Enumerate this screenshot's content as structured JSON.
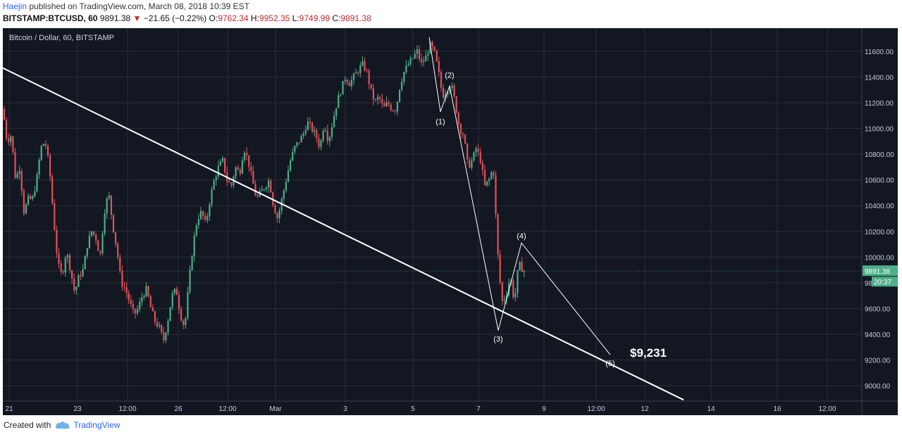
{
  "header": {
    "author": "Haejin",
    "published_text": "published on TradingView.com, March 08, 2018 10:39 EST",
    "symbol": "BITSTAMP:BTCUSD, 60",
    "last": "9891.38",
    "arrow": "▼",
    "change": "−21.65 (−0.22%)",
    "o_label": "O:",
    "o_val": "9762.34",
    "h_label": "H:",
    "h_val": "9952.35",
    "l_label": "L:",
    "l_val": "9749.99",
    "c_label": "C:",
    "c_val": "9891.38"
  },
  "footer": {
    "created_with": "Created with",
    "brand": "TradingView"
  },
  "chart_data": {
    "type": "candlestick",
    "title": "Bitcoin / Dollar, 60, BITSTAMP",
    "ylim": [
      8880,
      11780
    ],
    "y_ticks": [
      9000,
      9200,
      9400,
      9600,
      9800,
      10000,
      10200,
      10400,
      10600,
      10800,
      11000,
      11200,
      11400,
      11600
    ],
    "y_tick_labels": [
      "9000.00",
      "9200.00",
      "9400.00",
      "9600.00",
      "9800.00",
      "10000.00",
      "10200.00",
      "10400.00",
      "10600.00",
      "10800.00",
      "11000.00",
      "11200.00",
      "11400.00",
      "11600.00"
    ],
    "x_tick_labels": [
      "21",
      "23",
      "12:00",
      "26",
      "12:00",
      "Mar",
      "3",
      "5",
      "7",
      "9",
      "12:00",
      "12",
      "14",
      "16",
      "12:00"
    ],
    "price_label": "9891.38",
    "countdown_label": "20:37",
    "close_price": 9891.38,
    "price_path": [
      [
        0,
        11150
      ],
      [
        6,
        10900
      ],
      [
        12,
        10950
      ],
      [
        18,
        10600
      ],
      [
        24,
        10700
      ],
      [
        30,
        10350
      ],
      [
        36,
        10450
      ],
      [
        42,
        10450
      ],
      [
        48,
        10600
      ],
      [
        54,
        10850
      ],
      [
        60,
        10900
      ],
      [
        66,
        10700
      ],
      [
        72,
        10300
      ],
      [
        78,
        9950
      ],
      [
        84,
        9850
      ],
      [
        90,
        10050
      ],
      [
        96,
        9900
      ],
      [
        102,
        9720
      ],
      [
        108,
        9850
      ],
      [
        114,
        9900
      ],
      [
        120,
        10100
      ],
      [
        126,
        10200
      ],
      [
        132,
        10150
      ],
      [
        138,
        10000
      ],
      [
        144,
        10350
      ],
      [
        150,
        10500
      ],
      [
        156,
        10250
      ],
      [
        162,
        10050
      ],
      [
        168,
        9800
      ],
      [
        174,
        9750
      ],
      [
        180,
        9650
      ],
      [
        186,
        9550
      ],
      [
        192,
        9600
      ],
      [
        198,
        9700
      ],
      [
        204,
        9750
      ],
      [
        210,
        9600
      ],
      [
        216,
        9500
      ],
      [
        222,
        9450
      ],
      [
        228,
        9350
      ],
      [
        234,
        9500
      ],
      [
        240,
        9700
      ],
      [
        246,
        9750
      ],
      [
        252,
        9550
      ],
      [
        258,
        9450
      ],
      [
        264,
        9800
      ],
      [
        270,
        10100
      ],
      [
        276,
        10300
      ],
      [
        282,
        10350
      ],
      [
        288,
        10250
      ],
      [
        294,
        10450
      ],
      [
        300,
        10600
      ],
      [
        306,
        10700
      ],
      [
        312,
        10750
      ],
      [
        318,
        10600
      ],
      [
        324,
        10550
      ],
      [
        330,
        10700
      ],
      [
        336,
        10650
      ],
      [
        342,
        10850
      ],
      [
        348,
        10750
      ],
      [
        354,
        10600
      ],
      [
        360,
        10450
      ],
      [
        366,
        10500
      ],
      [
        372,
        10550
      ],
      [
        378,
        10600
      ],
      [
        384,
        10400
      ],
      [
        390,
        10300
      ],
      [
        396,
        10450
      ],
      [
        402,
        10600
      ],
      [
        408,
        10750
      ],
      [
        414,
        10850
      ],
      [
        420,
        10900
      ],
      [
        426,
        10950
      ],
      [
        432,
        11050
      ],
      [
        438,
        11000
      ],
      [
        444,
        10950
      ],
      [
        450,
        10850
      ],
      [
        456,
        11050
      ],
      [
        462,
        10900
      ],
      [
        468,
        11050
      ],
      [
        474,
        11200
      ],
      [
        480,
        11300
      ],
      [
        486,
        11400
      ],
      [
        492,
        11350
      ],
      [
        498,
        11400
      ],
      [
        504,
        11450
      ],
      [
        510,
        11500
      ],
      [
        516,
        11450
      ],
      [
        522,
        11300
      ],
      [
        528,
        11200
      ],
      [
        534,
        11250
      ],
      [
        540,
        11150
      ],
      [
        546,
        11200
      ],
      [
        552,
        11150
      ],
      [
        558,
        11150
      ],
      [
        564,
        11350
      ],
      [
        570,
        11450
      ],
      [
        576,
        11500
      ],
      [
        582,
        11550
      ],
      [
        588,
        11600
      ],
      [
        594,
        11500
      ],
      [
        600,
        11550
      ],
      [
        606,
        11650
      ],
      [
        612,
        11600
      ],
      [
        618,
        11450
      ],
      [
        624,
        11250
      ],
      [
        630,
        11300
      ],
      [
        636,
        11350
      ],
      [
        642,
        11200
      ],
      [
        648,
        11000
      ],
      [
        654,
        10950
      ],
      [
        660,
        10700
      ],
      [
        666,
        10750
      ],
      [
        672,
        10850
      ],
      [
        678,
        10750
      ],
      [
        684,
        10550
      ],
      [
        690,
        10600
      ],
      [
        696,
        10700
      ],
      [
        702,
        10050
      ],
      [
        708,
        9650
      ],
      [
        714,
        9700
      ],
      [
        720,
        9850
      ],
      [
        726,
        9650
      ],
      [
        732,
        9950
      ],
      [
        738,
        9900
      ],
      [
        742,
        9891
      ]
    ],
    "trendline": [
      [
        1990,
        11470
      ],
      [
        5680,
        8890
      ]
    ],
    "wave_labels": [
      {
        "label": "(1)",
        "x": 621,
        "y": 11120
      },
      {
        "label": "(2)",
        "x": 634,
        "y": 11350
      },
      {
        "label": "(3)",
        "x": 703,
        "y": 9430
      },
      {
        "label": "(4)",
        "x": 736,
        "y": 10100
      },
      {
        "label": "(5)",
        "x": 862,
        "y": 9240
      }
    ],
    "wave_path": [
      [
        605,
        11710
      ],
      [
        621,
        11130
      ],
      [
        634,
        11330
      ],
      [
        703,
        9430
      ],
      [
        736,
        10110
      ],
      [
        862,
        9240
      ]
    ],
    "annotation": {
      "text": "$9,231",
      "x": 890,
      "y": 9231
    },
    "background": "#131722",
    "up_color": "#4caf88",
    "down_color": "#e0525a"
  }
}
